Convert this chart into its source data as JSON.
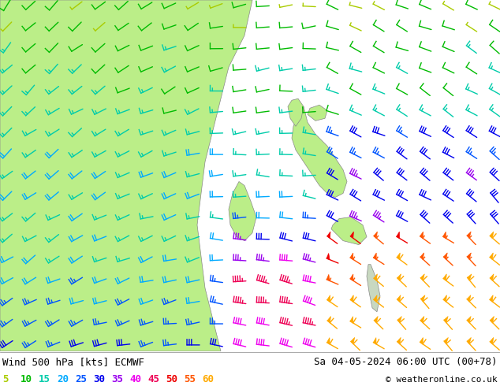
{
  "title_left": "Wind 500 hPa [kts] ECMWF",
  "title_right": "Sa 04-05-2024 06:00 UTC (00+78)",
  "copyright": "© weatheronline.co.uk",
  "legend_values": [
    5,
    10,
    15,
    20,
    25,
    30,
    35,
    40,
    45,
    50,
    55,
    60
  ],
  "legend_colors": [
    "#aacc00",
    "#00bb00",
    "#00ccaa",
    "#00aaff",
    "#0055ff",
    "#0000ee",
    "#9900ee",
    "#ee00ee",
    "#ee0055",
    "#ee0000",
    "#ff5500",
    "#ffaa00"
  ],
  "bg_color": "#ffffff",
  "land_color_left": "#bbee88",
  "land_color_japan": "#bbee88",
  "sea_color": "#e8e8e8",
  "border_color": "#888888",
  "figsize": [
    6.34,
    4.9
  ],
  "dpi": 100,
  "font_size_label": 9,
  "font_size_legend": 9
}
